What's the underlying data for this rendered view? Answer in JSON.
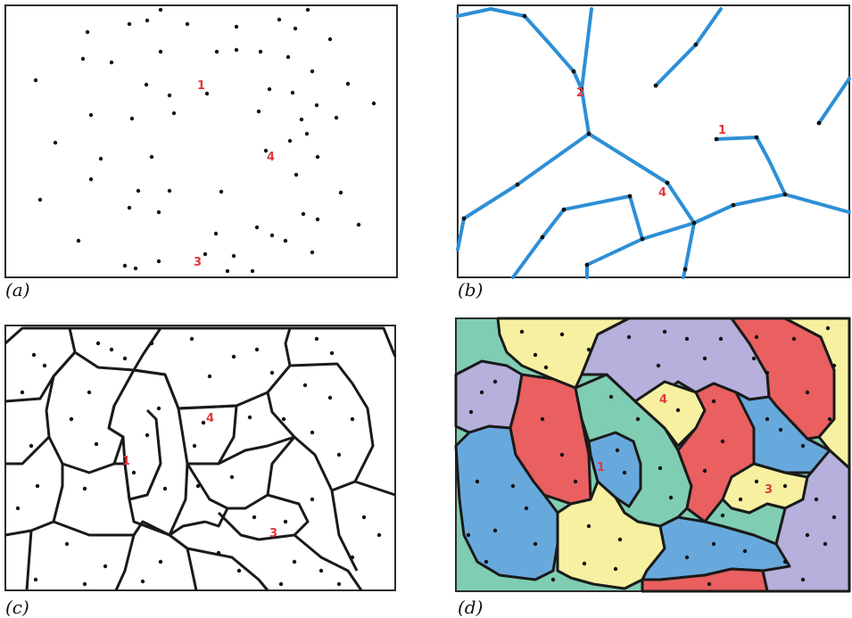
{
  "captions": {
    "a": "(a)",
    "b": "(b)",
    "c": "(c)",
    "d": "(d)"
  },
  "markers": {
    "one": "1",
    "two": "2",
    "three": "3",
    "four": "4"
  },
  "colors": {
    "points": "#111111",
    "markers": "#e0393c",
    "edges": "#2d8fd6",
    "region_teal": "#7fcdb3",
    "region_yellow": "#f6f0a0",
    "region_purple": "#b5b0dc",
    "region_red": "#ea5f5f",
    "region_blue": "#68a9dd"
  }
}
